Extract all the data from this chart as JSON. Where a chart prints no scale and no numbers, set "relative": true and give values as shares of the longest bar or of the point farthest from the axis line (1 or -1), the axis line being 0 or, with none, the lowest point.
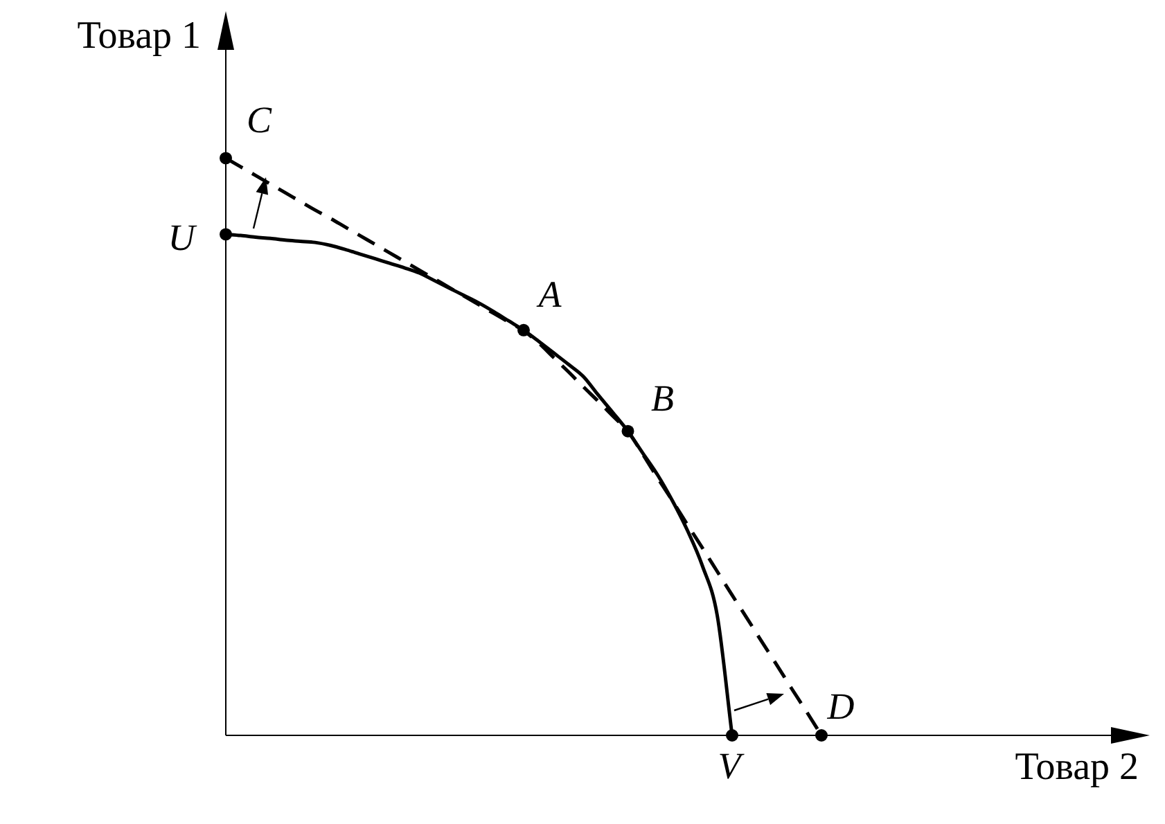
{
  "chart_data": {
    "type": "line",
    "relative": true,
    "xlabel": "Товар 2",
    "ylabel": "Товар 1",
    "marker": "none",
    "categories": [
      null,
      null,
      null,
      null,
      null,
      null,
      null,
      null,
      null,
      null,
      null,
      null,
      null,
      null,
      null,
      null,
      null,
      null,
      null,
      null,
      null,
      null,
      null,
      null,
      null,
      null,
      null,
      null,
      null,
      null,
      null,
      null,
      null,
      null,
      null,
      null,
      null,
      null,
      null,
      null,
      null
    ],
    "series": [
      {
        "color": "#000000",
        "line_style": "solid",
        "values": [
          0.868,
          0.866,
          0.863,
          0.861,
          0.858,
          0.856,
          0.854,
          0.849,
          0.842,
          0.834,
          0.826,
          0.818,
          0.81,
          0.801,
          0.788,
          0.775,
          0.762,
          0.749,
          0.734,
          0.718,
          0.702,
          0.683,
          0.663,
          0.643,
          0.622,
          0.59,
          0.559,
          0.527,
          0.489,
          0.451,
          0.406,
          0.355,
          0.294,
          0.208,
          0,
          null,
          null,
          null,
          null,
          null,
          null
        ]
      },
      {
        "color": "#000000",
        "line_style": "dashed",
        "values": [
          1,
          0.985,
          0.97,
          0.955,
          0.94,
          0.925,
          0.91,
          0.896,
          0.881,
          0.866,
          0.851,
          0.836,
          0.821,
          0.806,
          0.791,
          0.776,
          0.761,
          0.746,
          0.731,
          0.716,
          0.701,
          0.68,
          0.655,
          0.63,
          0.604,
          0.579,
          0.553,
          0.527,
          0.487,
          0.446,
          0.406,
          0.365,
          0.325,
          0.284,
          0.243,
          0.203,
          0.162,
          0.122,
          0.081,
          0.041,
          0
        ]
      }
    ],
    "annotations": [
      "C",
      "U",
      "A",
      "B",
      "V",
      "D"
    ]
  }
}
